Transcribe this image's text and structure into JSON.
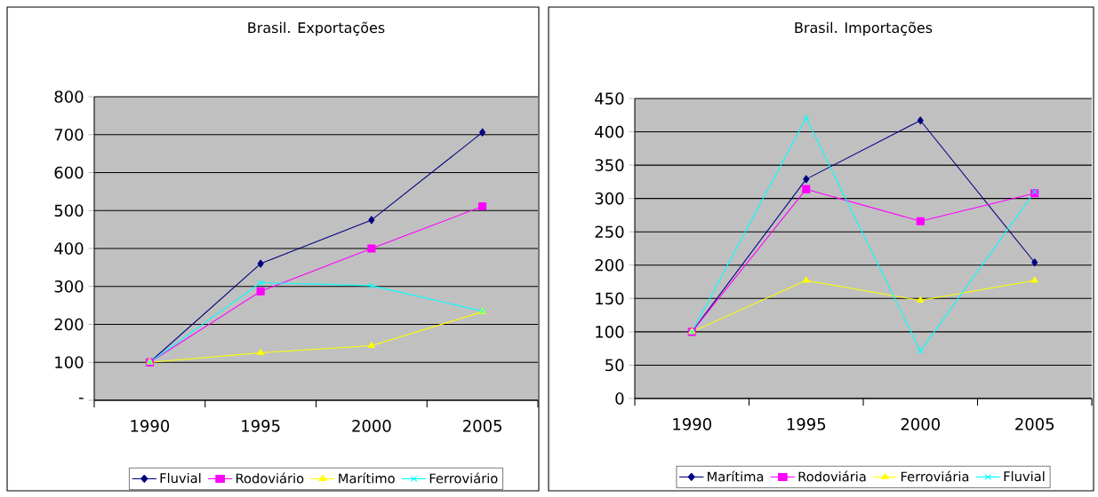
{
  "chart_data": [
    {
      "type": "line",
      "title": "Brasil. Exportações",
      "categories": [
        "1990",
        "1995",
        "2000",
        "2005"
      ],
      "ylim": [
        0,
        800
      ],
      "yticks": [
        {
          "value": 0,
          "label": "-"
        },
        100,
        200,
        300,
        400,
        500,
        600,
        700,
        800
      ],
      "grid": "y",
      "legend": "bottom",
      "line_style": "solid",
      "series": [
        {
          "name": "Fluvial",
          "color": "#000080",
          "marker": "diamond",
          "values": [
            100,
            360,
            475,
            706
          ]
        },
        {
          "name": "Rodoviário",
          "color": "#ff00ff",
          "marker": "square",
          "values": [
            100,
            287,
            400,
            511
          ]
        },
        {
          "name": "Marítimo",
          "color": "#ffff00",
          "marker": "triangle",
          "values": [
            100,
            125,
            144,
            233
          ]
        },
        {
          "name": "Ferroviário",
          "color": "#00ffff",
          "marker": "cross",
          "values": [
            100,
            310,
            302,
            235
          ]
        }
      ]
    },
    {
      "type": "line",
      "title": "Brasil. Importações",
      "categories": [
        "1990",
        "1995",
        "2000",
        "2005"
      ],
      "ylim": [
        0,
        450
      ],
      "yticks": [
        0,
        50,
        100,
        150,
        200,
        250,
        300,
        350,
        400,
        450
      ],
      "grid": "y",
      "legend": "bottom",
      "line_style": "solid",
      "series": [
        {
          "name": "Marítima",
          "color": "#000080",
          "marker": "diamond",
          "values": [
            100,
            329,
            417,
            204
          ]
        },
        {
          "name": "Rodoviária",
          "color": "#ff00ff",
          "marker": "square",
          "values": [
            100,
            314,
            266,
            308
          ]
        },
        {
          "name": "Ferroviária",
          "color": "#ffff00",
          "marker": "triangle",
          "values": [
            100,
            177,
            147,
            177
          ]
        },
        {
          "name": "Fluvial",
          "color": "#00ffff",
          "marker": "cross",
          "values": [
            100,
            421,
            71,
            310
          ]
        }
      ]
    }
  ]
}
